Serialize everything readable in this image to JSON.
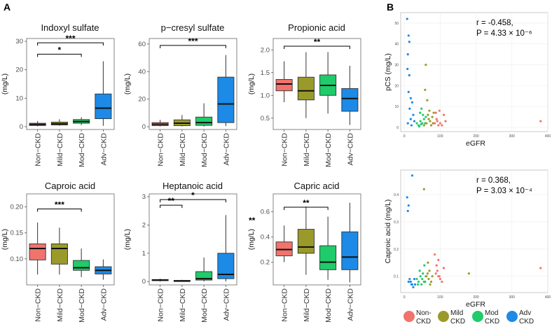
{
  "panel_labels": {
    "a": "A",
    "b": "B"
  },
  "categories": [
    "Non−CKD",
    "Mild−CKD",
    "Mod−CKD",
    "Adv−CKD"
  ],
  "colors": {
    "Non-CKD": "#F0736C",
    "Mild-CKD": "#9A9A2A",
    "Mod-CKD": "#1FCB6A",
    "Adv-CKD": "#1C8AE6"
  },
  "chart_data": [
    {
      "type": "box",
      "title": "Indoxyl sulfate",
      "ylabel": "(mg/L)",
      "ylim": [
        -1,
        31
      ],
      "yticks": [
        0,
        10,
        20,
        30
      ],
      "boxes": [
        {
          "q1": 0.4,
          "median": 0.8,
          "q3": 1.2,
          "low": 0.1,
          "high": 2.0
        },
        {
          "q1": 0.6,
          "median": 1.0,
          "q3": 1.6,
          "low": 0.3,
          "high": 2.6
        },
        {
          "q1": 1.2,
          "median": 1.8,
          "q3": 2.5,
          "low": 0.5,
          "high": 3.3
        },
        {
          "q1": 2.8,
          "median": 6.5,
          "q3": 11.5,
          "low": 0.3,
          "high": 23
        }
      ],
      "sig": [
        {
          "from": 0,
          "to": 2,
          "label": "*",
          "y": 25.5
        },
        {
          "from": 0,
          "to": 3,
          "label": "***",
          "y": 29.5
        }
      ]
    },
    {
      "type": "box",
      "title": "p−cresyl sulfate",
      "ylabel": "(mg/L)",
      "ylim": [
        -2,
        64
      ],
      "yticks": [
        0,
        20,
        40,
        60
      ],
      "boxes": [
        {
          "q1": 0.8,
          "median": 1.8,
          "q3": 3.0,
          "low": 0.2,
          "high": 5.0
        },
        {
          "q1": 0.8,
          "median": 2.6,
          "q3": 5.0,
          "low": 0.2,
          "high": 8.5
        },
        {
          "q1": 1.0,
          "median": 3.0,
          "q3": 7.0,
          "low": 0.2,
          "high": 17
        },
        {
          "q1": 3.0,
          "median": 16.5,
          "q3": 36,
          "low": 0.5,
          "high": 52
        }
      ],
      "sig": [
        {
          "from": 0,
          "to": 3,
          "label": "***",
          "y": 59
        }
      ]
    },
    {
      "type": "box",
      "title": "Propionic acid",
      "ylabel": "(mg/L)",
      "ylim": [
        0.25,
        2.25
      ],
      "yticks": [
        0.5,
        1.0,
        1.5,
        2.0
      ],
      "ytick_labels": [
        "0.5",
        "1.0",
        "1.5",
        "2.0"
      ],
      "boxes": [
        {
          "q1": 1.1,
          "median": 1.25,
          "q3": 1.35,
          "low": 0.85,
          "high": 1.75
        },
        {
          "q1": 0.9,
          "median": 1.1,
          "q3": 1.4,
          "low": 0.5,
          "high": 1.95
        },
        {
          "q1": 1.0,
          "median": 1.22,
          "q3": 1.45,
          "low": 0.6,
          "high": 1.95
        },
        {
          "q1": 0.65,
          "median": 0.93,
          "q3": 1.15,
          "low": 0.35,
          "high": 1.65
        }
      ],
      "sig": [
        {
          "from": 0,
          "to": 3,
          "label": "**",
          "y": 2.08
        }
      ]
    },
    {
      "type": "box",
      "title": "Caproic acid",
      "ylabel": "(mg/L)",
      "ylim": [
        0.05,
        0.225
      ],
      "yticks": [
        0.1,
        0.15,
        0.2
      ],
      "ytick_labels": [
        "0.10",
        "0.15",
        "0.20"
      ],
      "boxes": [
        {
          "q1": 0.098,
          "median": 0.12,
          "q3": 0.129,
          "low": 0.07,
          "high": 0.17
        },
        {
          "q1": 0.09,
          "median": 0.12,
          "q3": 0.129,
          "low": 0.07,
          "high": 0.16
        },
        {
          "q1": 0.078,
          "median": 0.083,
          "q3": 0.097,
          "low": 0.065,
          "high": 0.12
        },
        {
          "q1": 0.071,
          "median": 0.078,
          "q3": 0.085,
          "low": 0.06,
          "high": 0.099
        }
      ],
      "sig": [
        {
          "from": 0,
          "to": 2,
          "label": "***",
          "y": 0.196
        }
      ]
    },
    {
      "type": "box",
      "title": "Heptanoic acid",
      "ylabel": "(mg/L)",
      "ylim": [
        -0.12,
        3.1
      ],
      "yticks": [
        0,
        1,
        2,
        3
      ],
      "boxes": [
        {
          "q1": 0.03,
          "median": 0.05,
          "q3": 0.07,
          "low": 0.0,
          "high": 0.1
        },
        {
          "q1": 0.0,
          "median": 0.02,
          "q3": 0.04,
          "low": 0.0,
          "high": 0.06
        },
        {
          "q1": 0.05,
          "median": 0.1,
          "q3": 0.35,
          "low": 0.0,
          "high": 0.85
        },
        {
          "q1": 0.1,
          "median": 0.25,
          "q3": 1.0,
          "low": 0.0,
          "high": 2.35
        }
      ],
      "sig": [
        {
          "from": 0,
          "to": 1,
          "label": "**",
          "y": 2.7
        },
        {
          "from": 0,
          "to": 3,
          "label": "*",
          "y": 2.9
        }
      ]
    },
    {
      "type": "box",
      "title": "Capric acid",
      "ylabel": "(mg/L)",
      "ylim": [
        0.02,
        0.74
      ],
      "yticks": [
        0.2,
        0.4,
        0.6
      ],
      "ytick_labels": [
        "0.2",
        "0.4",
        "0.6"
      ],
      "boxes": [
        {
          "q1": 0.25,
          "median": 0.3,
          "q3": 0.36,
          "low": 0.2,
          "high": 0.49
        },
        {
          "q1": 0.27,
          "median": 0.32,
          "q3": 0.46,
          "low": 0.1,
          "high": 0.64
        },
        {
          "q1": 0.14,
          "median": 0.2,
          "q3": 0.33,
          "low": 0.06,
          "high": 0.56
        },
        {
          "q1": 0.14,
          "median": 0.24,
          "q3": 0.44,
          "low": 0.04,
          "high": 0.67
        }
      ],
      "sig": [
        {
          "from": 0,
          "to": 2,
          "label": "**",
          "y": 0.635
        }
      ],
      "side_label": "**"
    },
    {
      "type": "scatter",
      "xlabel": "eGFR",
      "ylabel": "pCS (mg/L)",
      "xlim": [
        -10,
        400
      ],
      "ylim": [
        -2,
        55
      ],
      "xticks": [
        0,
        100,
        200,
        300,
        400
      ],
      "yticks": [
        0,
        10,
        20,
        30,
        40,
        50
      ],
      "stat_r": "r = -0.458,",
      "stat_p": "P = 4.33 × 10⁻⁶",
      "points": {
        "Adv-CKD": [
          [
            8,
            52
          ],
          [
            12,
            44
          ],
          [
            14,
            41
          ],
          [
            10,
            35
          ],
          [
            9,
            28
          ],
          [
            14,
            25
          ],
          [
            12,
            17
          ],
          [
            18,
            14
          ],
          [
            22,
            12
          ],
          [
            15,
            9
          ],
          [
            25,
            6
          ],
          [
            18,
            4
          ],
          [
            10,
            2
          ],
          [
            28,
            3
          ],
          [
            20,
            1
          ]
        ],
        "Mod-CKD": [
          [
            40,
            1
          ],
          [
            45,
            3
          ],
          [
            50,
            2
          ],
          [
            55,
            4
          ],
          [
            48,
            9
          ],
          [
            52,
            6
          ],
          [
            42,
            0.5
          ],
          [
            58,
            2
          ],
          [
            60,
            5
          ],
          [
            47,
            1.5
          ],
          [
            44,
            7
          ],
          [
            35,
            2
          ]
        ],
        "Mild-CKD": [
          [
            62,
            2
          ],
          [
            68,
            4
          ],
          [
            72,
            3
          ],
          [
            75,
            1
          ],
          [
            66,
            6
          ],
          [
            70,
            8
          ],
          [
            58,
            18
          ],
          [
            64,
            13
          ],
          [
            80,
            2
          ],
          [
            78,
            5
          ],
          [
            55,
            1
          ],
          [
            82,
            7
          ],
          [
            60,
            30
          ]
        ],
        "Non-CKD": [
          [
            85,
            2
          ],
          [
            90,
            4
          ],
          [
            95,
            1
          ],
          [
            92,
            3
          ],
          [
            100,
            2
          ],
          [
            88,
            7
          ],
          [
            110,
            6
          ],
          [
            105,
            1
          ],
          [
            380,
            3
          ],
          [
            98,
            8
          ],
          [
            115,
            3
          ]
        ]
      }
    },
    {
      "type": "scatter",
      "xlabel": "eGFR",
      "ylabel": "Caproic acid (mg/L)",
      "xlim": [
        -10,
        400
      ],
      "ylim": [
        0.04,
        0.49
      ],
      "xticks": [
        0,
        100,
        200,
        300,
        400
      ],
      "yticks": [
        0.1,
        0.2,
        0.3,
        0.4
      ],
      "stat_r": "r = 0.368,",
      "stat_p": "P = 3.03 × 10⁻⁴",
      "points": {
        "Adv-CKD": [
          [
            22,
            0.47
          ],
          [
            8,
            0.39
          ],
          [
            12,
            0.36
          ],
          [
            10,
            0.34
          ],
          [
            15,
            0.09
          ],
          [
            18,
            0.08
          ],
          [
            20,
            0.07
          ],
          [
            12,
            0.08
          ],
          [
            25,
            0.06
          ],
          [
            28,
            0.09
          ],
          [
            22,
            0.07
          ],
          [
            30,
            0.07
          ]
        ],
        "Mod-CKD": [
          [
            40,
            0.08
          ],
          [
            45,
            0.1
          ],
          [
            50,
            0.09
          ],
          [
            55,
            0.08
          ],
          [
            48,
            0.07
          ],
          [
            52,
            0.11
          ],
          [
            58,
            0.08
          ],
          [
            60,
            0.1
          ],
          [
            38,
            0.07
          ],
          [
            43,
            0.12
          ],
          [
            35,
            0.09
          ],
          [
            56,
            0.14
          ]
        ],
        "Mild-CKD": [
          [
            55,
            0.42
          ],
          [
            62,
            0.1
          ],
          [
            68,
            0.09
          ],
          [
            70,
            0.12
          ],
          [
            75,
            0.08
          ],
          [
            65,
            0.11
          ],
          [
            180,
            0.11
          ],
          [
            72,
            0.07
          ],
          [
            78,
            0.1
          ],
          [
            66,
            0.15
          ]
        ],
        "Non-CKD": [
          [
            85,
            0.18
          ],
          [
            92,
            0.12
          ],
          [
            95,
            0.1
          ],
          [
            100,
            0.09
          ],
          [
            90,
            0.14
          ],
          [
            88,
            0.11
          ],
          [
            105,
            0.08
          ],
          [
            110,
            0.13
          ],
          [
            98,
            0.1
          ],
          [
            380,
            0.13
          ],
          [
            95,
            0.16
          ]
        ]
      }
    }
  ],
  "legend": [
    {
      "key": "Non-CKD",
      "line1": "Non-",
      "line2": "CKD"
    },
    {
      "key": "Mild-CKD",
      "line1": "Mild",
      "line2": "CKD"
    },
    {
      "key": "Mod-CKD",
      "line1": "Mod",
      "line2": "CKD"
    },
    {
      "key": "Adv-CKD",
      "line1": "Adv",
      "line2": "CKD"
    }
  ]
}
